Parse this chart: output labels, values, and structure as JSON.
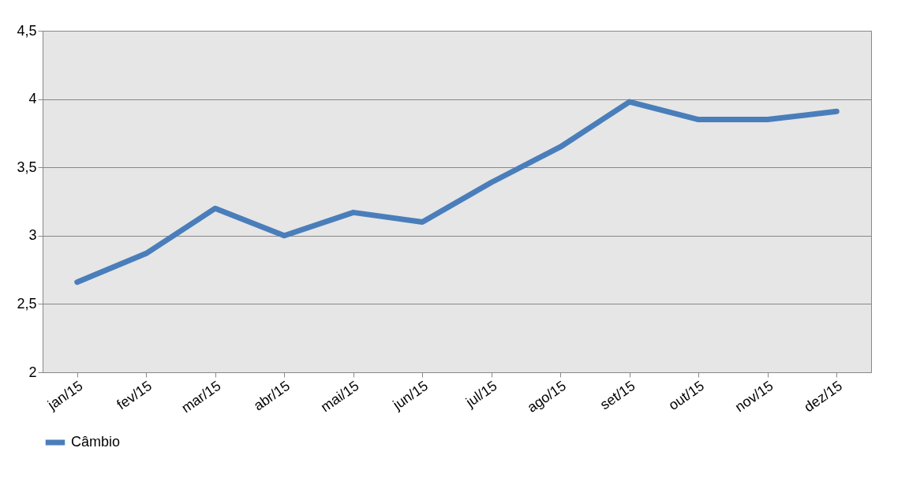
{
  "chart_data": {
    "type": "line",
    "categories": [
      "jan/15",
      "fev/15",
      "mar/15",
      "abr/15",
      "mai/15",
      "jun/15",
      "jul/15",
      "ago/15",
      "set/15",
      "out/15",
      "nov/15",
      "dez/15"
    ],
    "series": [
      {
        "name": "Câmbio",
        "color": "#4a7ebb",
        "values": [
          2.66,
          2.87,
          3.2,
          3.0,
          3.17,
          3.1,
          3.39,
          3.65,
          3.98,
          3.85,
          3.85,
          3.91
        ]
      }
    ],
    "ylim": [
      2,
      4.5
    ],
    "yticks": [
      2,
      {
        "value": 2.5,
        "label": "2,5"
      },
      3,
      {
        "value": 3.5,
        "label": "3,5"
      },
      4,
      {
        "value": 4.5,
        "label": "4,5"
      }
    ],
    "grid": "y",
    "legend": "bottom",
    "marker": "none",
    "line_style": "solid"
  }
}
